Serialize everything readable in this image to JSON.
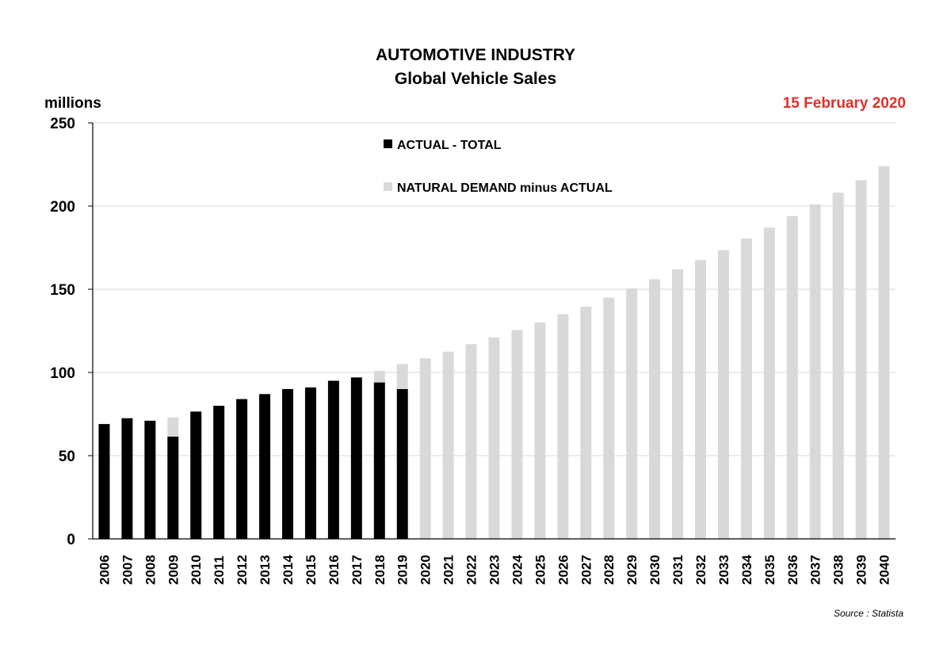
{
  "chart_data": {
    "type": "bar",
    "stacked": true,
    "title": "AUTOMOTIVE INDUSTRY",
    "subtitle": "Global Vehicle Sales",
    "ylabel": "millions",
    "date": "15 February 2020",
    "source": "Source : Statista",
    "ylim": [
      0,
      250
    ],
    "yticks": [
      0,
      50,
      100,
      150,
      200,
      250
    ],
    "grid": true,
    "legend_placement": "top-center",
    "categories": [
      "2006",
      "2007",
      "2008",
      "2009",
      "2010",
      "2011",
      "2012",
      "2013",
      "2014",
      "2015",
      "2016",
      "2017",
      "2018",
      "2019",
      "2020",
      "2021",
      "2022",
      "2023",
      "2024",
      "2025",
      "2026",
      "2027",
      "2028",
      "2029",
      "2030",
      "2031",
      "2032",
      "2033",
      "2034",
      "2035",
      "2036",
      "2037",
      "2038",
      "2039",
      "2040"
    ],
    "series": [
      {
        "name": "ACTUAL - TOTAL",
        "color": "#000000",
        "values": [
          69,
          72.5,
          71,
          61.5,
          76.5,
          80,
          84,
          87,
          90,
          91,
          95,
          97,
          94,
          90,
          0,
          0,
          0,
          0,
          0,
          0,
          0,
          0,
          0,
          0,
          0,
          0,
          0,
          0,
          0,
          0,
          0,
          0,
          0,
          0,
          0
        ]
      },
      {
        "name": "NATURAL DEMAND minus ACTUAL",
        "color": "#d9d9d9",
        "values": [
          0,
          0,
          0,
          11.5,
          0,
          0,
          0,
          0,
          0,
          0,
          0,
          0,
          7,
          15,
          108.5,
          112.5,
          117,
          121,
          125.5,
          130,
          135,
          139.5,
          145,
          150.5,
          156,
          162,
          167.5,
          173.5,
          180.5,
          187,
          194,
          201,
          208,
          215.5,
          224
        ]
      }
    ]
  },
  "colors": {
    "date_text": "#e0302a",
    "grid": "#d9d9d9",
    "axis": "#000000"
  }
}
